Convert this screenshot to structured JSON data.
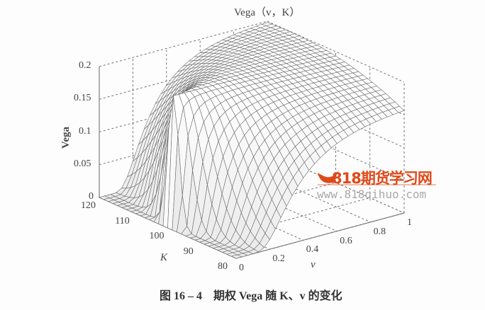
{
  "chart_data": {
    "type": "surface",
    "title": "Vega（v，K）",
    "xlabel": "K",
    "ylabel": "v",
    "zlabel": "Vega",
    "xlim": [
      80,
      120
    ],
    "ylim": [
      0,
      1
    ],
    "zlim": [
      0,
      0.2
    ],
    "x_ticks": [
      "80",
      "90",
      "100",
      "110",
      "120"
    ],
    "y_ticks": [
      "0",
      "0.2",
      "0.4",
      "0.6",
      "0.8",
      "1"
    ],
    "z_ticks": [
      "0",
      "0.05",
      "0.1",
      "0.15",
      "0.2"
    ],
    "grid": true,
    "style": "wireframe mesh, grayscale"
  },
  "caption": "图 16 – 4　期权 Vega 随 K、v 的变化",
  "watermark": {
    "brand": "818期货学习网",
    "url": "www.818qihuo.com",
    "color": "#e04a1a"
  }
}
